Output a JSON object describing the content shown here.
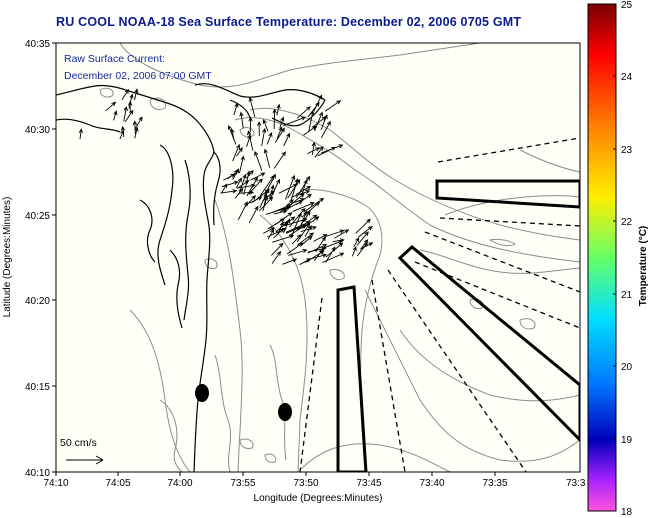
{
  "title": "RU COOL  NOAA-18  Sea Surface Temperature:  December 02, 2006 0705 GMT",
  "annotation": {
    "line1": "Raw Surface Current:",
    "line2": "December 02, 2006 07:00 GMT"
  },
  "scale_label": "50 cm/s",
  "axes": {
    "xlabel": "Longitude (Degrees:Minutes)",
    "ylabel": "Latitude (Degrees:Minutes)",
    "xticks": [
      "74:10",
      "74:05",
      "74:00",
      "73:55",
      "73:50",
      "73:45",
      "73:40",
      "73:35",
      "73:3"
    ],
    "yticks": [
      "40:35",
      "40:30",
      "40:25",
      "40:20",
      "40:15",
      "40:10"
    ]
  },
  "colorbar": {
    "label": "Temperature (°C)",
    "ticks": [
      "25",
      "24",
      "23",
      "22",
      "21",
      "20",
      "19",
      "18"
    ],
    "range": [
      18,
      25
    ]
  },
  "colors": {
    "title": "#0a1a8c",
    "annotation": "#1a2aa0",
    "contour": "#8c8c8c",
    "coast": "#000000"
  }
}
